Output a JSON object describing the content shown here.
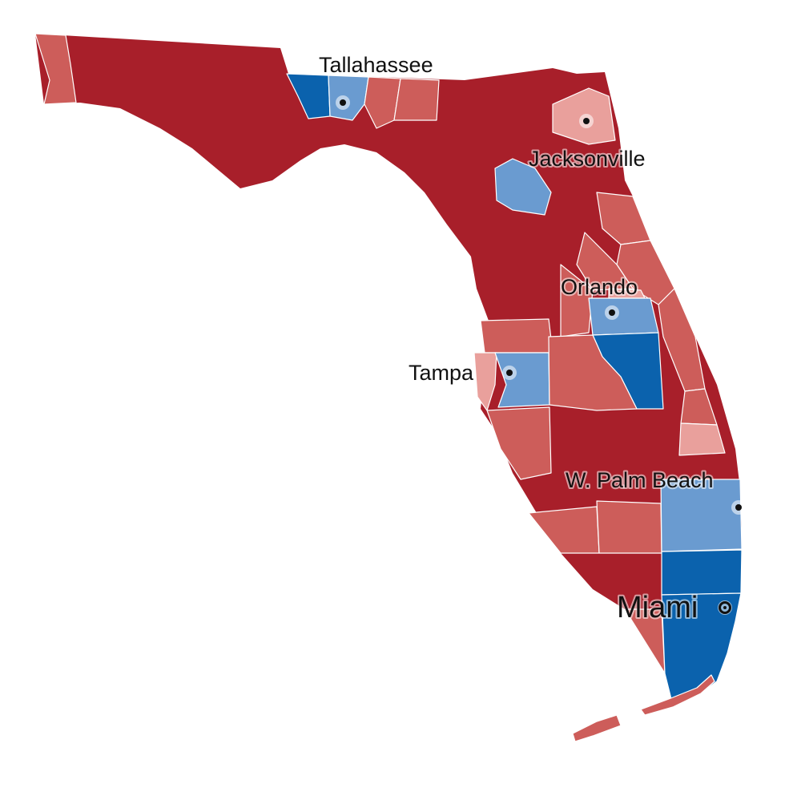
{
  "map": {
    "colors": {
      "strong_rep": "#a81f2a",
      "lean_rep": "#cd5d5a",
      "slight_rep": "#e9a09c",
      "slight_dem": "#6a9bd0",
      "strong_dem": "#0b62ad",
      "outline": "#ffffff"
    },
    "cities": [
      {
        "name": "Tallahassee",
        "dot_style": "solid"
      },
      {
        "name": "Jacksonville",
        "dot_style": "solid"
      },
      {
        "name": "Orlando",
        "dot_style": "solid"
      },
      {
        "name": "Tampa",
        "dot_style": "solid"
      },
      {
        "name": "W. Palm Beach",
        "dot_style": "solid"
      },
      {
        "name": "Miami",
        "dot_style": "ring"
      }
    ]
  }
}
